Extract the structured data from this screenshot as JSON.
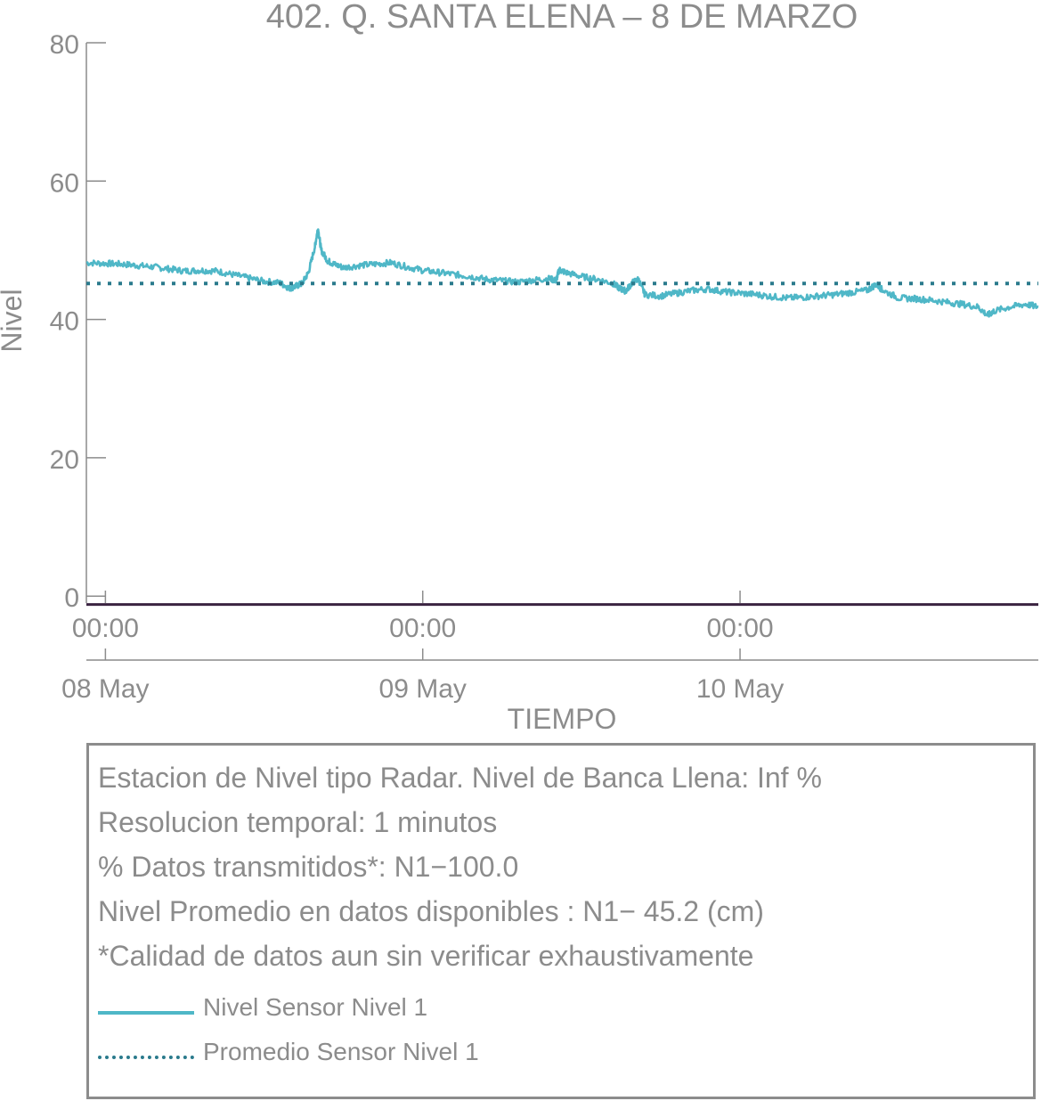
{
  "chart_data": {
    "type": "line",
    "title": "402. Q. SANTA ELENA – 8 DE MARZO",
    "xlabel": "TIEMPO",
    "ylabel": "Nivel",
    "ylim": [
      -1,
      80
    ],
    "xlim": [
      -0.06,
      2.94
    ],
    "yticks": [
      0,
      20,
      40,
      60,
      80
    ],
    "xticks": [
      {
        "value": 0,
        "time": "00:00",
        "date": "08 May"
      },
      {
        "value": 1,
        "time": "00:00",
        "date": "09 May"
      },
      {
        "value": 2,
        "time": "00:00",
        "date": "10 May"
      }
    ],
    "grid": false,
    "series": [
      {
        "name": "Nivel Sensor Nivel 1",
        "style": "solid",
        "color": "#4fb7c7",
        "x": [
          -0.06,
          0.0,
          0.05,
          0.1,
          0.15,
          0.2,
          0.25,
          0.3,
          0.35,
          0.4,
          0.45,
          0.5,
          0.55,
          0.58,
          0.6,
          0.62,
          0.64,
          0.66,
          0.67,
          0.68,
          0.7,
          0.72,
          0.75,
          0.8,
          0.85,
          0.9,
          0.95,
          1.0,
          1.05,
          1.1,
          1.15,
          1.2,
          1.25,
          1.3,
          1.35,
          1.4,
          1.42,
          1.43,
          1.45,
          1.5,
          1.55,
          1.6,
          1.62,
          1.64,
          1.66,
          1.68,
          1.7,
          1.75,
          1.8,
          1.85,
          1.9,
          1.95,
          2.0,
          2.05,
          2.1,
          2.15,
          2.2,
          2.25,
          2.3,
          2.35,
          2.4,
          2.43,
          2.45,
          2.5,
          2.55,
          2.6,
          2.65,
          2.7,
          2.75,
          2.78,
          2.8,
          2.85,
          2.9,
          2.94
        ],
        "y": [
          48.2,
          48.1,
          48.0,
          47.8,
          47.6,
          47.3,
          47.0,
          47.1,
          47.0,
          46.5,
          46.0,
          45.5,
          45.3,
          44.5,
          44.8,
          45.2,
          46.8,
          50.5,
          53.2,
          50.0,
          48.5,
          48.0,
          47.5,
          47.8,
          48.0,
          48.2,
          47.6,
          47.1,
          46.8,
          46.5,
          46.2,
          45.8,
          45.6,
          45.4,
          45.7,
          45.9,
          45.6,
          47.2,
          46.8,
          46.2,
          45.8,
          45.2,
          44.5,
          44.1,
          45.3,
          45.8,
          43.6,
          43.4,
          43.8,
          44.2,
          44.4,
          44.0,
          43.8,
          43.6,
          43.3,
          43.1,
          43.2,
          43.4,
          43.6,
          43.9,
          44.2,
          45.1,
          44.2,
          43.1,
          43.0,
          42.8,
          42.5,
          42.2,
          41.8,
          40.6,
          41.2,
          41.8,
          42.2,
          41.8
        ]
      },
      {
        "name": "Promedio Sensor Nivel 1",
        "style": "dotted",
        "color": "#2a7a8c",
        "x": [
          -0.06,
          2.94
        ],
        "y": [
          45.2,
          45.2
        ]
      },
      {
        "name": "",
        "style": "solid",
        "color": "#3a2340",
        "x": [
          -0.06,
          2.94
        ],
        "y": [
          -1.2,
          -1.2
        ]
      }
    ]
  },
  "info_box": {
    "lines": [
      "Estacion de Nivel tipo Radar. Nivel de Banca Llena:  Inf %",
      "Resolucion temporal: 1 minutos",
      "% Datos transmitidos*: N1−100.0",
      "Nivel Promedio en datos disponibles : N1− 45.2 (cm)",
      "*Calidad de datos aun sin verificar exhaustivamente"
    ],
    "legend": [
      {
        "label": "Nivel Sensor Nivel 1",
        "style": "solid",
        "color": "#4fb7c7"
      },
      {
        "label": "Promedio Sensor Nivel 1",
        "style": "dotted",
        "color": "#2a7a8c"
      }
    ]
  }
}
